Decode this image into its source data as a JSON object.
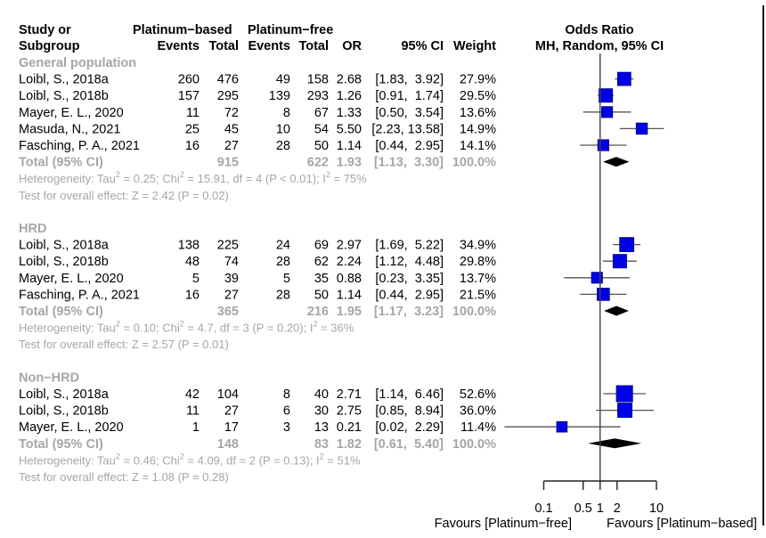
{
  "chart_data": {
    "type": "forest",
    "title": "Odds Ratio",
    "subtitle": "MH, Random, 95% CI",
    "headers": {
      "study_line1": "Study or",
      "study_line2": "Subgroup",
      "group1": "Platinum−based",
      "group2": "Platinum−free",
      "events": "Events",
      "total": "Total",
      "or": "OR",
      "ci": "95% CI",
      "weight": "Weight"
    },
    "xaxis": {
      "scale": "log",
      "ticks": [
        0.1,
        0.5,
        1,
        2,
        10
      ],
      "tick_labels": [
        "0.1",
        "0.5",
        "1",
        "2",
        "10"
      ],
      "xlim": [
        0.1,
        10
      ],
      "reference_line": 1,
      "label_left": "Favours [Platinum−free]",
      "label_right": "Favours [Platinum−based]"
    },
    "subgroups": [
      {
        "name": "General population",
        "studies": [
          {
            "study": "Loibl, S., 2018a",
            "e1": "260",
            "n1": "476",
            "e2": "49",
            "n2": "158",
            "or": 2.68,
            "lo": 1.83,
            "hi": 3.92,
            "or_txt": "2.68",
            "ci_txt": "[1.83,  3.92]",
            "weight": 27.9,
            "weight_txt": "27.9%"
          },
          {
            "study": "Loibl, S., 2018b",
            "e1": "157",
            "n1": "295",
            "e2": "139",
            "n2": "293",
            "or": 1.26,
            "lo": 0.91,
            "hi": 1.74,
            "or_txt": "1.26",
            "ci_txt": "[0.91,  1.74]",
            "weight": 29.5,
            "weight_txt": "29.5%"
          },
          {
            "study": "Mayer, E. L., 2020",
            "e1": "11",
            "n1": "72",
            "e2": "8",
            "n2": "67",
            "or": 1.33,
            "lo": 0.5,
            "hi": 3.54,
            "or_txt": "1.33",
            "ci_txt": "[0.50,  3.54]",
            "weight": 13.6,
            "weight_txt": "13.6%"
          },
          {
            "study": "Masuda, N., 2021",
            "e1": "25",
            "n1": "45",
            "e2": "10",
            "n2": "54",
            "or": 5.5,
            "lo": 2.23,
            "hi": 13.58,
            "or_txt": "5.50",
            "ci_txt": "[2.23, 13.58]",
            "weight": 14.9,
            "weight_txt": "14.9%"
          },
          {
            "study": "Fasching, P. A., 2021",
            "e1": "16",
            "n1": "27",
            "e2": "28",
            "n2": "50",
            "or": 1.14,
            "lo": 0.44,
            "hi": 2.95,
            "or_txt": "1.14",
            "ci_txt": "[0.44,  2.95]",
            "weight": 14.1,
            "weight_txt": "14.1%"
          }
        ],
        "total": {
          "label": "Total (95% CI)",
          "n1": "915",
          "n2": "622",
          "or": 1.93,
          "lo": 1.13,
          "hi": 3.3,
          "or_txt": "1.93",
          "ci_txt": "[1.13,  3.30]",
          "weight_txt": "100.0%"
        },
        "het": {
          "prefix": "Heterogeneity: Tau",
          "tau2": " = 0.25; Chi",
          "chi2": " = 15.91, df = 4 (P < 0.01); I",
          "i2": " = 75%"
        },
        "test": "Test for overall effect: Z = 2.42 (P = 0.02)"
      },
      {
        "name": "HRD",
        "studies": [
          {
            "study": "Loibl, S., 2018a",
            "e1": "138",
            "n1": "225",
            "e2": "24",
            "n2": "69",
            "or": 2.97,
            "lo": 1.69,
            "hi": 5.22,
            "or_txt": "2.97",
            "ci_txt": "[1.69,  5.22]",
            "weight": 34.9,
            "weight_txt": "34.9%"
          },
          {
            "study": "Loibl, S., 2018b",
            "e1": "48",
            "n1": "74",
            "e2": "28",
            "n2": "62",
            "or": 2.24,
            "lo": 1.12,
            "hi": 4.48,
            "or_txt": "2.24",
            "ci_txt": "[1.12,  4.48]",
            "weight": 29.8,
            "weight_txt": "29.8%"
          },
          {
            "study": "Mayer, E. L., 2020",
            "e1": "5",
            "n1": "39",
            "e2": "5",
            "n2": "35",
            "or": 0.88,
            "lo": 0.23,
            "hi": 3.35,
            "or_txt": "0.88",
            "ci_txt": "[0.23,  3.35]",
            "weight": 13.7,
            "weight_txt": "13.7%"
          },
          {
            "study": "Fasching, P. A., 2021",
            "e1": "16",
            "n1": "27",
            "e2": "28",
            "n2": "50",
            "or": 1.14,
            "lo": 0.44,
            "hi": 2.95,
            "or_txt": "1.14",
            "ci_txt": "[0.44,  2.95]",
            "weight": 21.5,
            "weight_txt": "21.5%"
          }
        ],
        "total": {
          "label": "Total (95% CI)",
          "n1": "365",
          "n2": "216",
          "or": 1.95,
          "lo": 1.17,
          "hi": 3.23,
          "or_txt": "1.95",
          "ci_txt": "[1.17,  3.23]",
          "weight_txt": "100.0%"
        },
        "het": {
          "prefix": "Heterogeneity: Tau",
          "tau2": " = 0.10; Chi",
          "chi2": " = 4.7, df = 3 (P = 0.20); I",
          "i2": " = 36%"
        },
        "test": "Test for overall effect: Z = 2.57 (P = 0.01)"
      },
      {
        "name": "Non−HRD",
        "studies": [
          {
            "study": "Loibl, S., 2018a",
            "e1": "42",
            "n1": "104",
            "e2": "8",
            "n2": "40",
            "or": 2.71,
            "lo": 1.14,
            "hi": 6.46,
            "or_txt": "2.71",
            "ci_txt": "[1.14,  6.46]",
            "weight": 52.6,
            "weight_txt": "52.6%"
          },
          {
            "study": "Loibl, S., 2018b",
            "e1": "11",
            "n1": "27",
            "e2": "6",
            "n2": "30",
            "or": 2.75,
            "lo": 0.85,
            "hi": 8.94,
            "or_txt": "2.75",
            "ci_txt": "[0.85,  8.94]",
            "weight": 36.0,
            "weight_txt": "36.0%"
          },
          {
            "study": "Mayer, E. L., 2020",
            "e1": "1",
            "n1": "17",
            "e2": "3",
            "n2": "13",
            "or": 0.21,
            "lo": 0.02,
            "hi": 2.29,
            "or_txt": "0.21",
            "ci_txt": "[0.02,  2.29]",
            "weight": 11.4,
            "weight_txt": "11.4%"
          }
        ],
        "total": {
          "label": "Total (95% CI)",
          "n1": "148",
          "n2": "83",
          "or": 1.82,
          "lo": 0.61,
          "hi": 5.4,
          "or_txt": "1.82",
          "ci_txt": "[0.61,  5.40]",
          "weight_txt": "100.0%"
        },
        "het": {
          "prefix": "Heterogeneity: Tau",
          "tau2": " = 0.46; Chi",
          "chi2": " = 4.09, df = 2 (P = 0.13); I",
          "i2": " = 51%"
        },
        "test": "Test for overall effect: Z = 1.08 (P = 0.28)"
      }
    ],
    "colors": {
      "square_fill": "#0000e6",
      "square_border": "#00008b",
      "ci_line": "#555555",
      "diamond": "#000000",
      "subgroup_text": "#a6a6a6"
    }
  }
}
